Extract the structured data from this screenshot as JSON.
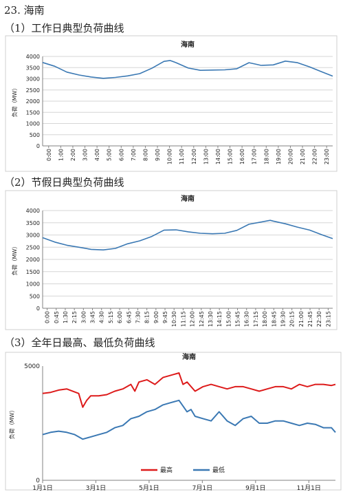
{
  "page": {
    "heading": "23. 海南",
    "section1": "（1）工作日典型负荷曲线",
    "section2": "（2）节假日典型负荷曲线",
    "section3": "（3）全年日最高、最低负荷曲线"
  },
  "colors": {
    "blue": "#3a78b3",
    "red": "#dd1a1a",
    "grid": "#d6d6d6",
    "axis": "#808080"
  },
  "chart_data": [
    {
      "type": "line",
      "title": "海南",
      "ylabel": "负荷（MW）",
      "ylim": [
        0,
        4000
      ],
      "yticks": [
        "0",
        "500",
        "1000",
        "1500",
        "2000",
        "2500",
        "3000",
        "3500",
        "4000"
      ],
      "xticks": [
        "0:00",
        "1:00",
        "2:00",
        "3:00",
        "4:00",
        "5:00",
        "6:00",
        "7:00",
        "8:00",
        "9:00",
        "10:00",
        "11:00",
        "12:00",
        "13:00",
        "14:00",
        "15:00",
        "16:00",
        "17:00",
        "18:00",
        "19:00",
        "20:00",
        "21:00",
        "22:00",
        "23:00"
      ],
      "grid": true,
      "series": [
        {
          "x": [
            0,
            1,
            2,
            3,
            4,
            5,
            6,
            7,
            8,
            9,
            10,
            10.5,
            11,
            12,
            13,
            14,
            15,
            16,
            17,
            17.5,
            18,
            19,
            20,
            21,
            22,
            23,
            23.9
          ],
          "values": [
            3730,
            3560,
            3300,
            3170,
            3080,
            3020,
            3060,
            3130,
            3230,
            3470,
            3780,
            3820,
            3720,
            3480,
            3380,
            3390,
            3400,
            3450,
            3720,
            3660,
            3600,
            3620,
            3790,
            3720,
            3530,
            3310,
            3120
          ]
        }
      ]
    },
    {
      "type": "line",
      "title": "海南",
      "ylabel": "负荷（MW）",
      "ylim": [
        0,
        4000
      ],
      "yticks": [
        "0",
        "500",
        "1000",
        "1500",
        "2000",
        "2500",
        "3000",
        "3500",
        "4000"
      ],
      "xticks": [
        "0:00",
        "0:45",
        "1:30",
        "2:15",
        "3:00",
        "3:45",
        "4:30",
        "5:15",
        "6:00",
        "6:45",
        "7:30",
        "8:15",
        "9:00",
        "9:45",
        "10:30",
        "11:15",
        "12:00",
        "12:45",
        "13:30",
        "14:15",
        "15:00",
        "15:45",
        "16:30",
        "17:15",
        "18:00",
        "18:45",
        "19:30",
        "20:15",
        "21:00",
        "21:45",
        "22:30",
        "23:15"
      ],
      "grid": true,
      "series": [
        {
          "x": [
            0,
            1,
            2,
            3,
            4,
            5,
            6,
            7,
            8,
            9,
            10,
            11,
            12,
            13,
            14,
            15,
            16,
            17,
            18,
            18.75,
            19,
            20,
            21,
            22,
            23,
            23.9
          ],
          "values": [
            2890,
            2710,
            2580,
            2500,
            2410,
            2390,
            2450,
            2640,
            2760,
            2940,
            3200,
            3210,
            3130,
            3070,
            3050,
            3070,
            3190,
            3440,
            3530,
            3600,
            3570,
            3460,
            3320,
            3200,
            3010,
            2850
          ]
        }
      ]
    },
    {
      "type": "line",
      "title": "海南",
      "ylabel": "负荷（MW）",
      "ylim": [
        0,
        5000
      ],
      "yticks": [
        "0",
        "5000"
      ],
      "xticks": [
        "1月1日",
        "3月1日",
        "5月1日",
        "7月1日",
        "9月1日",
        "11月1日"
      ],
      "legend": "bottom",
      "grid": false,
      "series": [
        {
          "name": "最高",
          "color": "#dd1a1a",
          "x": [
            0,
            10,
            20,
            30,
            45,
            50,
            55,
            60,
            70,
            80,
            90,
            100,
            110,
            115,
            120,
            130,
            140,
            150,
            160,
            170,
            175,
            180,
            190,
            200,
            210,
            220,
            230,
            240,
            250,
            260,
            270,
            280,
            290,
            300,
            310,
            320,
            330,
            340,
            350,
            360,
            365
          ],
          "values": [
            3800,
            3850,
            3950,
            4000,
            3800,
            3200,
            3500,
            3700,
            3700,
            3750,
            3900,
            4000,
            4200,
            3900,
            4300,
            4400,
            4200,
            4500,
            4600,
            4700,
            4200,
            4300,
            3900,
            4100,
            4200,
            4100,
            4000,
            4100,
            4100,
            4000,
            3900,
            4000,
            4100,
            4100,
            4000,
            4200,
            4100,
            4200,
            4200,
            4150,
            4200
          ]
        },
        {
          "name": "最低",
          "color": "#3a78b3",
          "x": [
            0,
            10,
            20,
            30,
            40,
            50,
            60,
            70,
            80,
            90,
            100,
            110,
            120,
            130,
            140,
            150,
            160,
            170,
            180,
            185,
            190,
            200,
            210,
            220,
            230,
            240,
            250,
            260,
            270,
            280,
            290,
            300,
            310,
            320,
            330,
            340,
            350,
            360,
            365
          ],
          "values": [
            2000,
            2100,
            2150,
            2100,
            2000,
            1800,
            1900,
            2000,
            2100,
            2300,
            2400,
            2700,
            2800,
            3000,
            3100,
            3300,
            3400,
            3500,
            3000,
            3100,
            2800,
            2700,
            2600,
            3000,
            2600,
            2400,
            2700,
            2800,
            2500,
            2500,
            2600,
            2600,
            2500,
            2400,
            2500,
            2450,
            2300,
            2300,
            2100
          ]
        }
      ]
    }
  ]
}
